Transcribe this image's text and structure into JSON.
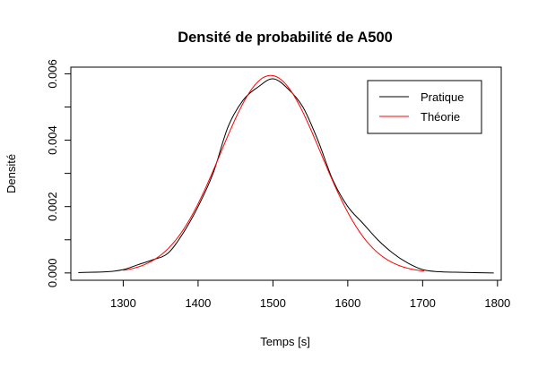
{
  "chart_data": {
    "type": "line",
    "title": "Densité de probabilité de A500",
    "xlabel": "Temps [s]",
    "ylabel": "Densité",
    "xlim": [
      1230,
      1805
    ],
    "ylim": [
      -0.00022,
      0.0062
    ],
    "x_ticks": [
      1300,
      1400,
      1500,
      1600,
      1700,
      1800
    ],
    "x_tick_labels": [
      "1300",
      "1400",
      "1500",
      "1600",
      "1700",
      "1800"
    ],
    "y_ticks": [
      0.0,
      0.002,
      0.004,
      0.006
    ],
    "y_tick_labels": [
      "0.000",
      "0.002",
      "0.004",
      "0.006"
    ],
    "y_minor_ticks": [
      0.001,
      0.003,
      0.005
    ],
    "grid": false,
    "legend": {
      "position": "top-right",
      "entries": [
        {
          "label": "Pratique",
          "color": "#000000"
        },
        {
          "label": "Théorie",
          "color": "#ff0000"
        }
      ]
    },
    "series": [
      {
        "name": "Pratique",
        "color": "#000000",
        "x": [
          1240,
          1280,
          1300,
          1320,
          1340,
          1360,
          1380,
          1400,
          1420,
          1440,
          1460,
          1480,
          1500,
          1520,
          1540,
          1560,
          1580,
          1600,
          1620,
          1640,
          1660,
          1680,
          1700,
          1720,
          1750,
          1795
        ],
        "y": [
          1e-05,
          4e-05,
          0.0001,
          0.00025,
          0.0004,
          0.0006,
          0.0012,
          0.002,
          0.003,
          0.0044,
          0.0052,
          0.0056,
          0.00585,
          0.00555,
          0.005,
          0.004,
          0.0028,
          0.002,
          0.0015,
          0.001,
          0.0006,
          0.0003,
          0.0001,
          4e-05,
          2e-05,
          0.0
        ]
      },
      {
        "name": "Théorie",
        "color": "#ff0000",
        "distribution": "normal",
        "mean": 1497,
        "sd": 67,
        "x_range": [
          1300,
          1702
        ],
        "peak_density": 0.00595
      }
    ]
  }
}
